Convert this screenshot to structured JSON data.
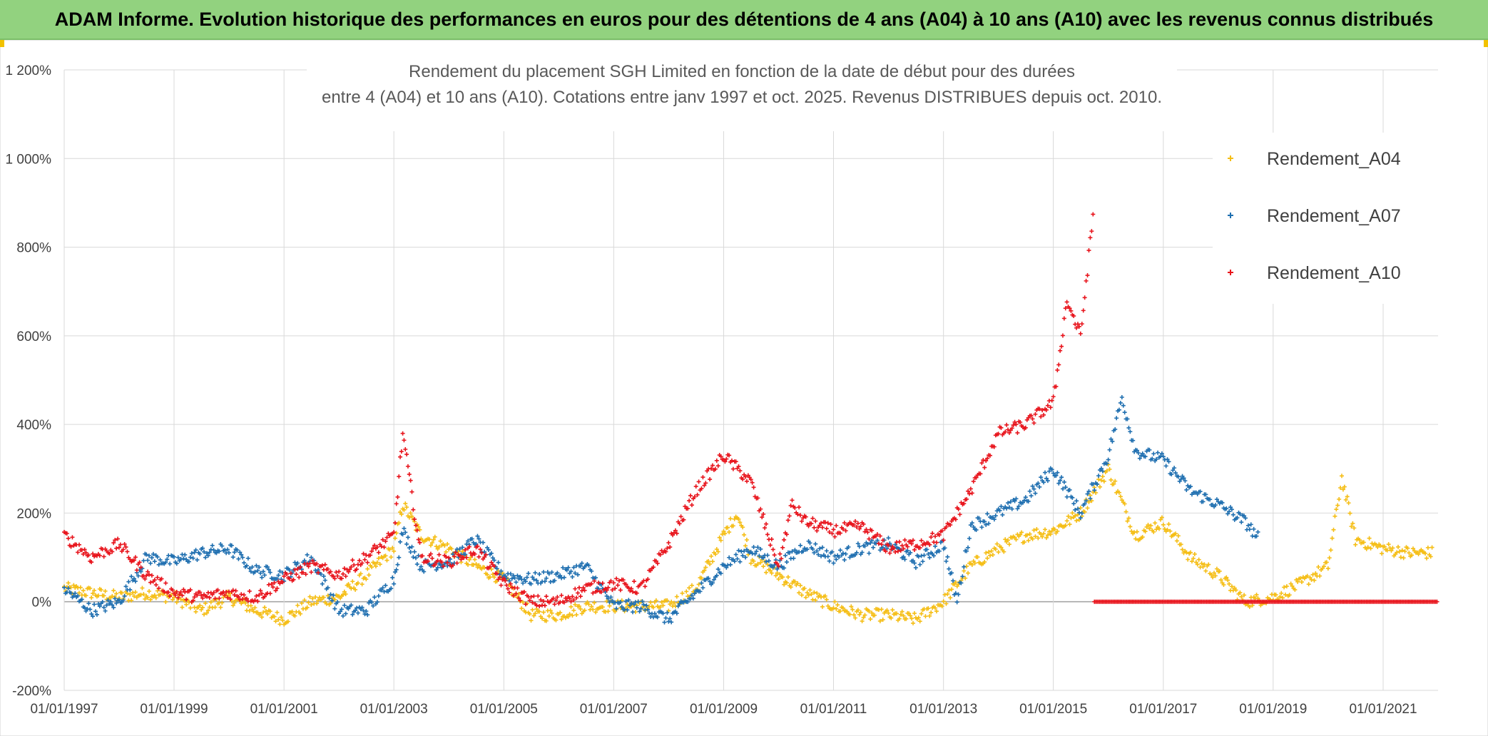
{
  "banner": {
    "title": "ADAM Informe. Evolution historique des performances en euros pour des détentions de 4 ans (A04) à 10 ans (A10) avec les revenus connus distribués"
  },
  "colors": {
    "banner_bg": "#92d27f",
    "A04": "#f5be16",
    "A07": "#1f6fb0",
    "A10": "#e8141c",
    "grid": "#d9d9d9",
    "zero_line": "#a6a6a6"
  },
  "chart_data": {
    "type": "scatter",
    "title_lines": [
      "Rendement du placement SGH Limited en fonction de la date de début pour des durées",
      "entre 4 (A04) et 10 ans (A10). Cotations entre janv 1997 et oct. 2025. Revenus DISTRIBUES depuis oct. 2010."
    ],
    "x_range": [
      "1997-01-01",
      "2022-01-01"
    ],
    "x_ticks": [
      "01/01/1997",
      "01/01/1999",
      "01/01/2001",
      "01/01/2003",
      "01/01/2005",
      "01/01/2007",
      "01/01/2009",
      "01/01/2011",
      "01/01/2013",
      "01/01/2015",
      "01/01/2017",
      "01/01/2019",
      "01/01/2021"
    ],
    "y_range": [
      -200,
      1200
    ],
    "y_ticks": [
      -200,
      0,
      200,
      400,
      600,
      800,
      1000,
      1200
    ],
    "y_tick_labels": [
      "-200%",
      "0%",
      "200%",
      "400%",
      "600%",
      "800%",
      "1 000%",
      "1 200%"
    ],
    "y_unit": "%",
    "grid": true,
    "legend_position": "top-right",
    "series": [
      {
        "name": "Rendement_A04",
        "x": [
          "1997-01-01",
          "1997-07-01",
          "1998-01-01",
          "1998-07-01",
          "1999-01-01",
          "1999-07-01",
          "2000-01-01",
          "2000-07-01",
          "2001-01-01",
          "2001-07-01",
          "2002-01-01",
          "2002-07-01",
          "2003-01-01",
          "2003-03-01",
          "2003-07-01",
          "2004-01-01",
          "2004-07-01",
          "2005-01-01",
          "2005-07-01",
          "2006-01-01",
          "2006-07-01",
          "2007-01-01",
          "2007-07-01",
          "2008-01-01",
          "2008-07-01",
          "2009-01-01",
          "2009-04-01",
          "2009-07-01",
          "2010-01-01",
          "2010-07-01",
          "2011-01-01",
          "2011-07-01",
          "2012-01-01",
          "2012-07-01",
          "2013-01-01",
          "2013-07-01",
          "2014-01-01",
          "2014-07-01",
          "2015-01-01",
          "2015-07-01",
          "2016-01-01",
          "2016-07-01",
          "2017-01-01",
          "2017-07-01",
          "2018-01-01",
          "2018-07-01",
          "2019-01-01",
          "2019-07-01",
          "2020-01-01",
          "2020-04-01",
          "2020-07-01",
          "2021-01-01",
          "2021-07-01",
          "2021-12-01"
        ],
        "values": [
          30,
          20,
          10,
          20,
          10,
          -20,
          10,
          -20,
          -40,
          0,
          10,
          60,
          120,
          220,
          150,
          120,
          80,
          50,
          -30,
          -30,
          -10,
          -10,
          -10,
          -10,
          30,
          150,
          200,
          100,
          60,
          20,
          -10,
          -30,
          -30,
          -40,
          0,
          80,
          120,
          150,
          160,
          200,
          300,
          150,
          180,
          100,
          60,
          0,
          10,
          40,
          80,
          280,
          140,
          120,
          110,
          110
        ]
      },
      {
        "name": "Rendement_A07",
        "x": [
          "1997-01-01",
          "1997-07-01",
          "1998-01-01",
          "1998-07-01",
          "1999-01-01",
          "1999-07-01",
          "2000-01-01",
          "2000-07-01",
          "2001-01-01",
          "2001-07-01",
          "2002-01-01",
          "2002-07-01",
          "2003-01-01",
          "2003-03-01",
          "2003-07-01",
          "2004-01-01",
          "2004-07-01",
          "2005-01-01",
          "2005-07-01",
          "2006-01-01",
          "2006-07-01",
          "2007-01-01",
          "2007-07-01",
          "2008-01-01",
          "2008-07-01",
          "2009-01-01",
          "2009-07-01",
          "2010-01-01",
          "2010-07-01",
          "2011-01-01",
          "2011-07-01",
          "2012-01-01",
          "2012-07-01",
          "2013-01-01",
          "2013-04-01",
          "2013-07-01",
          "2014-01-01",
          "2014-07-01",
          "2015-01-01",
          "2015-07-01",
          "2016-01-01",
          "2016-04-01",
          "2016-07-01",
          "2017-01-01",
          "2017-07-01",
          "2018-01-01",
          "2018-07-01",
          "2018-10-01"
        ],
        "values": [
          30,
          -20,
          0,
          100,
          90,
          110,
          120,
          70,
          60,
          100,
          -20,
          -20,
          50,
          160,
          80,
          90,
          140,
          60,
          50,
          60,
          80,
          -10,
          -10,
          -40,
          20,
          80,
          120,
          80,
          130,
          100,
          120,
          130,
          90,
          130,
          0,
          170,
          200,
          230,
          300,
          200,
          330,
          460,
          340,
          320,
          250,
          220,
          180,
          140
        ]
      },
      {
        "name": "Rendement_A10",
        "x": [
          "1997-01-01",
          "1997-07-01",
          "1998-01-01",
          "1998-07-01",
          "1999-01-01",
          "1999-07-01",
          "2000-01-01",
          "2000-07-01",
          "2001-01-01",
          "2001-07-01",
          "2002-01-01",
          "2002-07-01",
          "2003-01-01",
          "2003-03-01",
          "2003-07-01",
          "2004-01-01",
          "2004-07-01",
          "2005-01-01",
          "2005-07-01",
          "2006-01-01",
          "2006-07-01",
          "2007-01-01",
          "2007-07-01",
          "2008-01-01",
          "2008-07-01",
          "2009-01-01",
          "2009-07-01",
          "2010-01-01",
          "2010-04-01",
          "2010-07-01",
          "2011-01-01",
          "2011-07-01",
          "2012-01-01",
          "2012-07-01",
          "2013-01-01",
          "2013-07-01",
          "2014-01-01",
          "2014-07-01",
          "2015-01-01",
          "2015-04-01",
          "2015-07-01",
          "2015-10-01"
        ],
        "values": [
          150,
          100,
          130,
          60,
          20,
          10,
          20,
          10,
          50,
          80,
          60,
          100,
          150,
          380,
          100,
          90,
          120,
          40,
          0,
          0,
          30,
          40,
          30,
          130,
          250,
          330,
          270,
          80,
          220,
          180,
          160,
          170,
          120,
          130,
          150,
          250,
          380,
          400,
          450,
          680,
          600,
          900
        ],
        "zero_segment": {
          "from": "2015-10-01",
          "to": "2021-12-31",
          "value": 0
        }
      }
    ]
  }
}
